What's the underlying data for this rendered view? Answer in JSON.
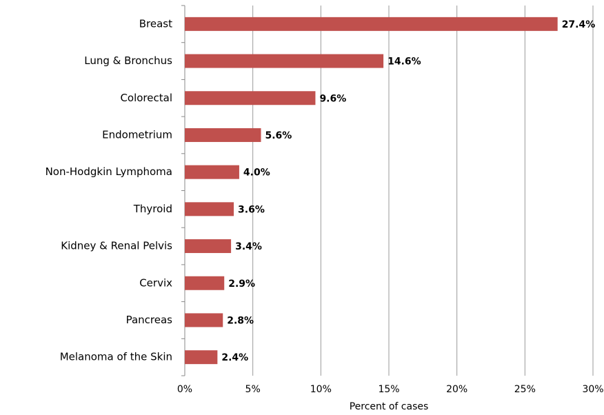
{
  "chart_data": {
    "type": "bar",
    "orientation": "horizontal",
    "x_label": "Percent of cases",
    "categories": [
      "Breast",
      "Lung & Bronchus",
      "Colorectal",
      "Endometrium",
      "Non-Hodgkin Lymphoma",
      "Thyroid",
      "Kidney & Renal Pelvis",
      "Cervix",
      "Pancreas",
      "Melanoma of the Skin"
    ],
    "values": [
      27.4,
      14.6,
      9.6,
      5.6,
      4.0,
      3.6,
      3.4,
      2.9,
      2.8,
      2.4
    ],
    "value_labels": [
      "27.4%",
      "14.6%",
      "9.6%",
      "5.6%",
      "4.0%",
      "3.6%",
      "3.4%",
      "2.9%",
      "2.8%",
      "2.4%"
    ],
    "color": "#c0504d",
    "xlim": [
      0,
      30
    ],
    "xticks": [
      {
        "value": 0,
        "label": "0%"
      },
      {
        "value": 5,
        "label": "5%"
      },
      {
        "value": 10,
        "label": "10%"
      },
      {
        "value": 15,
        "label": "15%"
      },
      {
        "value": 20,
        "label": "20%"
      },
      {
        "value": 25,
        "label": "25%"
      },
      {
        "value": 30,
        "label": "30%"
      }
    ],
    "grid": true
  }
}
